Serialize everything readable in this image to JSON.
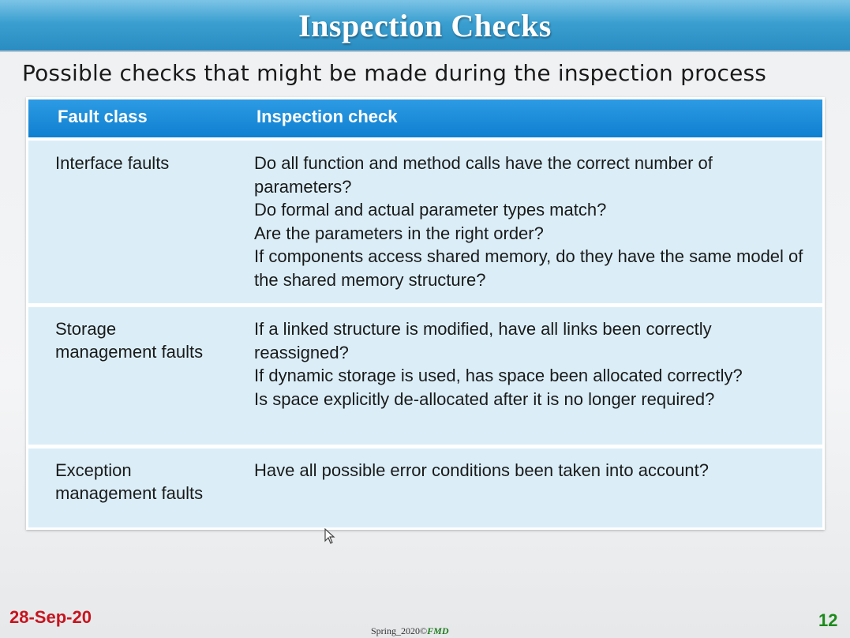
{
  "slide": {
    "title": "Inspection Checks",
    "subtitle": "Possible checks that might be made during the inspection process"
  },
  "table": {
    "headers": [
      "Fault class",
      "Inspection check"
    ],
    "rows": [
      {
        "fault_class": "Interface faults",
        "checks": [
          "Do all function and method calls have the correct number of parameters?",
          "Do formal and actual parameter types match?",
          "Are the parameters in the right order?",
          "If components access shared memory, do they have the same model of the shared memory structure?"
        ]
      },
      {
        "fault_class": "Storage\nmanagement faults",
        "checks": [
          "If a linked structure is modified, have all links been correctly reassigned?",
          "If dynamic storage is used, has space been allocated correctly?",
          "Is space explicitly de-allocated after it is no longer required?"
        ]
      },
      {
        "fault_class": "Exception\nmanagement faults",
        "checks": [
          "Have all possible error conditions been taken into account?"
        ]
      }
    ]
  },
  "footer": {
    "date": "28-Sep-20",
    "credit_prefix": "Spring_2020",
    "credit_mark": "©",
    "credit_author": "FMD",
    "page_number": "12"
  },
  "colors": {
    "title_bar": "#3a9fd0",
    "table_header": "#1585d6",
    "row_bg": "#dbeef8",
    "date": "#c8141e",
    "page_number": "#1b8a1b"
  }
}
